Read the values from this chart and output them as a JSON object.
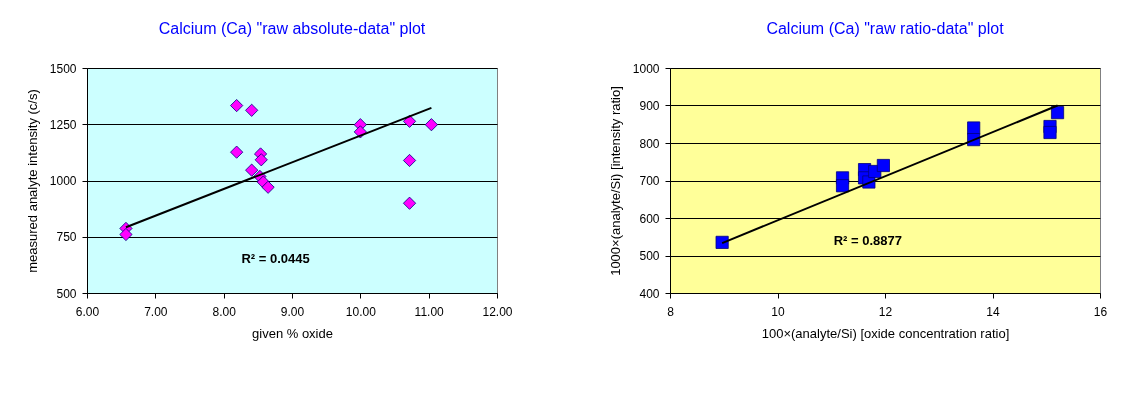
{
  "chart_data": [
    {
      "type": "scatter",
      "title": "Calcium (Ca) \"raw absolute-data\" plot",
      "xlabel": "given % oxide",
      "ylabel": "measured analyte intensity (c/s)",
      "xlim": [
        6,
        12
      ],
      "xticks": [
        {
          "value": 6,
          "label": "6.00"
        },
        {
          "value": 7,
          "label": "7.00"
        },
        {
          "value": 8,
          "label": "8.00"
        },
        {
          "value": 9,
          "label": "9.00"
        },
        {
          "value": 10,
          "label": "10.00"
        },
        {
          "value": 11,
          "label": "11.00"
        },
        {
          "value": 12,
          "label": "12.00"
        }
      ],
      "ylim": [
        500,
        1500
      ],
      "yticks": [
        500,
        750,
        1000,
        1250,
        1500
      ],
      "grid": "y",
      "legend": false,
      "annotations": [
        "R² = 0.0445"
      ],
      "series": [
        {
          "type": "scatter",
          "color": "#ff00ff",
          "marker": "diamond",
          "x": [
            6.57,
            6.57,
            8.19,
            8.41,
            8.19,
            8.54,
            8.55,
            8.41,
            8.53,
            8.58,
            8.65,
            10.0,
            10.0,
            10.72,
            11.04,
            10.72,
            10.72
          ],
          "values": [
            787,
            760,
            1333,
            1312,
            1126,
            1118,
            1092,
            1046,
            1018,
            993,
            970,
            1248,
            1216,
            1263,
            1248,
            1089,
            899
          ]
        },
        {
          "type": "line",
          "color": "#000000",
          "marker": "none",
          "x": [
            6.57,
            11.04
          ],
          "values": [
            792,
            1323
          ]
        }
      ]
    },
    {
      "type": "scatter",
      "title": "Calcium (Ca) \"raw ratio-data\" plot",
      "xlabel": "100×(analyte/Si)  [oxide concentration ratio]",
      "ylabel": "1000×(analyte/Si) [intensity ratio]",
      "xlim": [
        8,
        16
      ],
      "xticks": [
        8,
        10,
        12,
        14,
        16
      ],
      "ylim": [
        400,
        1000
      ],
      "yticks": [
        400,
        500,
        600,
        700,
        800,
        900,
        1000
      ],
      "grid": "y",
      "legend": false,
      "annotations": [
        "R² = 0.8877"
      ],
      "series": [
        {
          "type": "scatter",
          "color": "#0000ff",
          "marker": "square",
          "x": [
            8.97,
            11.21,
            11.21,
            11.62,
            11.62,
            11.7,
            11.81,
            11.97,
            13.65,
            13.65,
            15.07,
            15.07,
            15.21
          ],
          "values": [
            535,
            707,
            686,
            729,
            707,
            696,
            724,
            740,
            840,
            809,
            844,
            828,
            881
          ]
        },
        {
          "type": "line",
          "color": "#000000",
          "marker": "none",
          "x": [
            8.97,
            15.21
          ],
          "values": [
            533,
            900
          ]
        }
      ]
    }
  ]
}
